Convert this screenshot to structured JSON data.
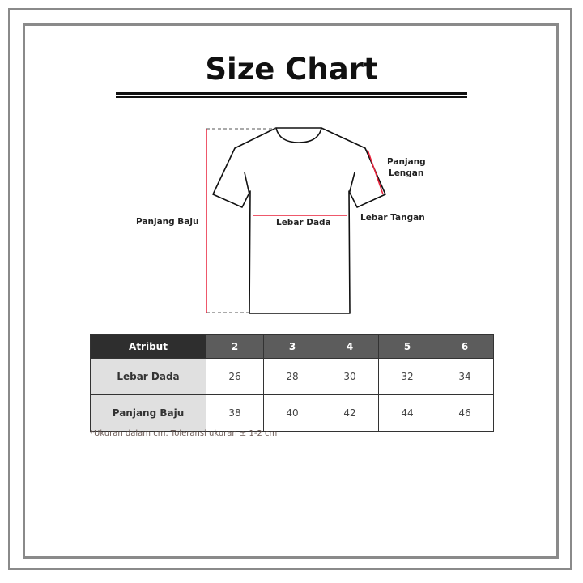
{
  "title": "Size Chart",
  "labels": {
    "panjang_baju": "Panjang Baju",
    "panjang_lengan_1": "Panjang",
    "panjang_lengan_2": "Lengan",
    "lebar_dada": "Lebar Dada",
    "lebar_tangan": "Lebar Tangan"
  },
  "accent_color": "#e8203a",
  "table": {
    "header": [
      "Atribut",
      "2",
      "3",
      "4",
      "5",
      "6"
    ],
    "rows": [
      {
        "label": "Lebar Dada",
        "values": [
          "26",
          "28",
          "30",
          "32",
          "34"
        ]
      },
      {
        "label": "Panjang Baju",
        "values": [
          "38",
          "40",
          "42",
          "44",
          "46"
        ]
      }
    ]
  },
  "note": "*Ukuran dalam cm. Toleransi ukuran ± 1-2 cm"
}
